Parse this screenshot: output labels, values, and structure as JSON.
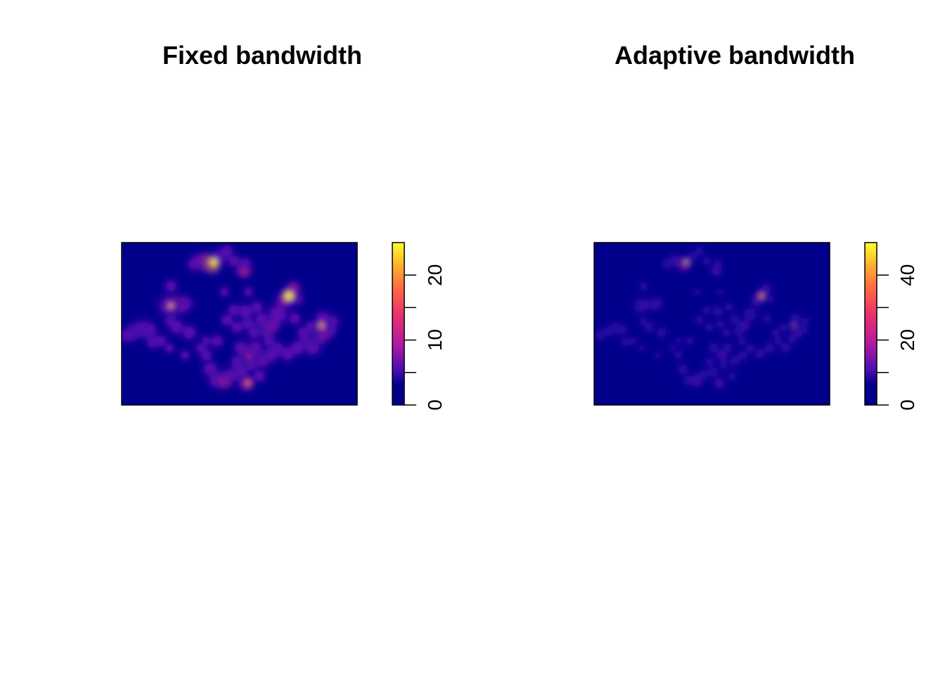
{
  "chart_data": [
    {
      "type": "heatmap",
      "title": "Fixed bandwidth",
      "colorbar": {
        "min": 0,
        "max": 25,
        "ticks": [
          0,
          5,
          10,
          15,
          20,
          25
        ],
        "tick_labels": [
          "0",
          "10",
          "20"
        ],
        "labeled_ticks": [
          0,
          10,
          20
        ]
      },
      "palette": [
        "#00008b",
        "#00008b",
        "#6a0fb0",
        "#c81a9a",
        "#ef3c6a",
        "#ff7a3a",
        "#ffb52e",
        "#ffe02a",
        "#ffff2c"
      ]
    },
    {
      "type": "heatmap",
      "title": "Adaptive bandwidth",
      "colorbar": {
        "min": 0,
        "max": 50,
        "ticks": [
          0,
          10,
          20,
          30,
          40,
          50
        ],
        "tick_labels": [
          "0",
          "20",
          "40"
        ],
        "labeled_ticks": [
          0,
          20,
          40
        ]
      },
      "palette": [
        "#00008b",
        "#00008b",
        "#6a0fb0",
        "#c81a9a",
        "#ef3c6a",
        "#ff7a3a",
        "#ffb52e",
        "#ffe02a",
        "#ffff2c"
      ]
    }
  ]
}
